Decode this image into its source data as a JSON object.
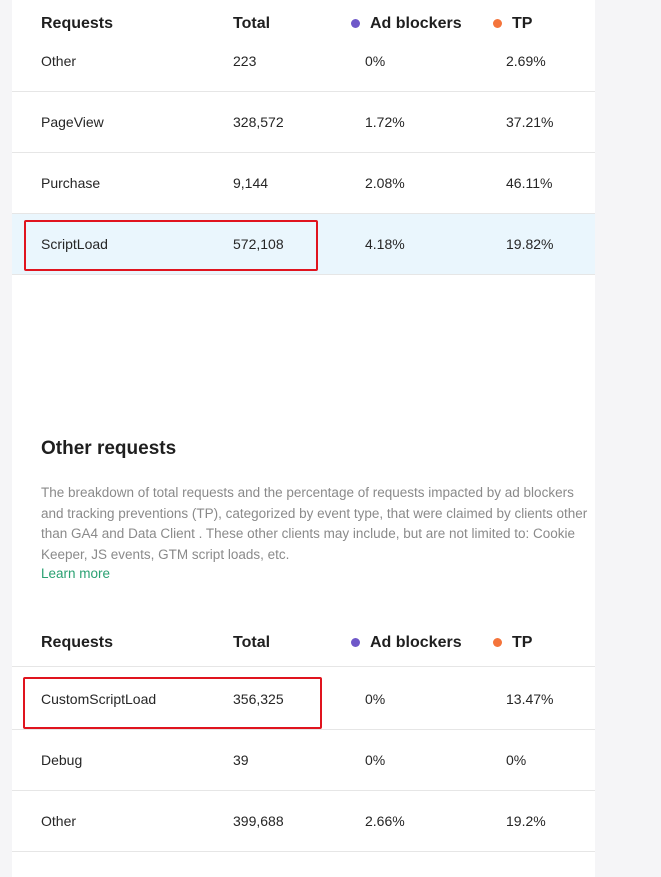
{
  "columns": {
    "requests": "Requests",
    "total": "Total",
    "ad_blockers": "Ad blockers",
    "tp": "TP"
  },
  "legend_colors": {
    "ad_blockers": "#6f58c9",
    "tp": "#f4743b"
  },
  "ga4_table": {
    "rows": [
      {
        "name": "Other",
        "total": "223",
        "ad_blockers": "0%",
        "tp": "2.69%"
      },
      {
        "name": "PageView",
        "total": "328,572",
        "ad_blockers": "1.72%",
        "tp": "37.21%"
      },
      {
        "name": "Purchase",
        "total": "9,144",
        "ad_blockers": "2.08%",
        "tp": "46.11%"
      },
      {
        "name": "ScriptLoad",
        "total": "572,108",
        "ad_blockers": "4.18%",
        "tp": "19.82%"
      }
    ]
  },
  "other_requests": {
    "title": "Other requests",
    "description": "The breakdown of total requests and the percentage of requests impacted by ad blockers and tracking preventions (TP), categorized by event type, that were claimed by clients other than GA4 and Data Client . These other clients may include, but are not limited to: Cookie Keeper, JS events, GTM script loads, etc.",
    "learn_more": "Learn more",
    "rows": [
      {
        "name": "CustomScriptLoad",
        "total": "356,325",
        "ad_blockers": "0%",
        "tp": "13.47%"
      },
      {
        "name": "Debug",
        "total": "39",
        "ad_blockers": "0%",
        "tp": "0%"
      },
      {
        "name": "Other",
        "total": "399,688",
        "ad_blockers": "2.66%",
        "tp": "19.2%"
      }
    ]
  }
}
